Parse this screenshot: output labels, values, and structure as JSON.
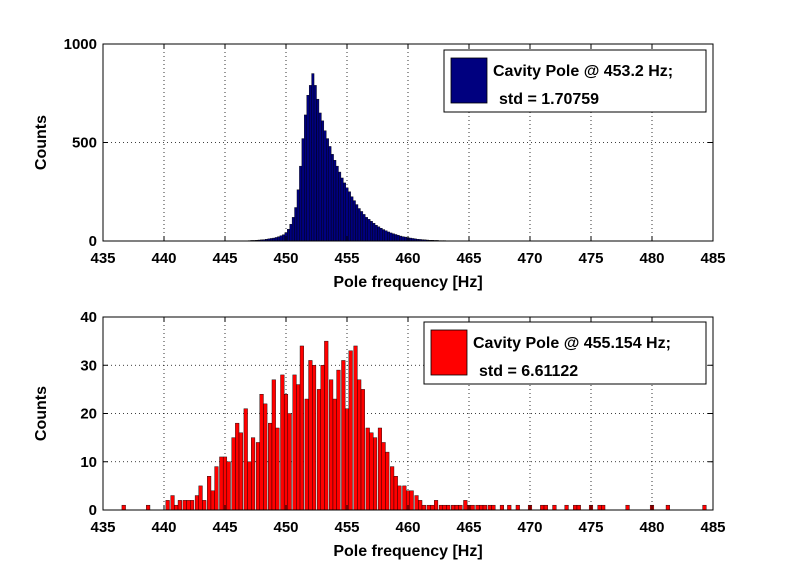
{
  "chart_data": [
    {
      "type": "bar",
      "xlabel": "Pole frequency [Hz]",
      "ylabel": "Counts",
      "xlim": [
        435,
        485
      ],
      "ylim": [
        0,
        1000
      ],
      "xticks": [
        "435",
        "440",
        "445",
        "450",
        "455",
        "460",
        "465",
        "470",
        "475",
        "480",
        "485"
      ],
      "yticks": [
        "0",
        "500",
        "1000"
      ],
      "grid": true,
      "legend_position": "top-right",
      "legend": [
        "Cavity Pole @ 453.2 Hz;",
        "std = 1.70759"
      ],
      "color": "#00007f",
      "bin_width": 0.2,
      "x": [
        447.0,
        447.2,
        447.4,
        447.6,
        447.8,
        448.0,
        448.2,
        448.4,
        448.6,
        448.8,
        449.0,
        449.2,
        449.4,
        449.6,
        449.8,
        450.0,
        450.2,
        450.4,
        450.6,
        450.8,
        451.0,
        451.2,
        451.4,
        451.6,
        451.8,
        452.0,
        452.2,
        452.4,
        452.6,
        452.8,
        453.0,
        453.2,
        453.4,
        453.6,
        453.8,
        454.0,
        454.2,
        454.4,
        454.6,
        454.8,
        455.0,
        455.2,
        455.4,
        455.6,
        455.8,
        456.0,
        456.2,
        456.4,
        456.6,
        456.8,
        457.0,
        457.2,
        457.4,
        457.6,
        457.8,
        458.0,
        458.2,
        458.4,
        458.6,
        458.8,
        459.0,
        459.2,
        459.4,
        459.6,
        459.8,
        460.0,
        460.2,
        460.4,
        460.6,
        460.8,
        461.0,
        461.2,
        461.4,
        461.6,
        461.8,
        462.0,
        462.2,
        462.4,
        462.6,
        462.8,
        463.0
      ],
      "values": [
        2,
        3,
        3,
        4,
        5,
        6,
        7,
        9,
        11,
        13,
        15,
        18,
        22,
        27,
        32,
        42,
        60,
        85,
        120,
        170,
        260,
        380,
        520,
        640,
        740,
        790,
        850,
        790,
        720,
        650,
        610,
        560,
        520,
        480,
        440,
        410,
        380,
        350,
        320,
        295,
        270,
        250,
        225,
        205,
        185,
        165,
        150,
        135,
        120,
        110,
        100,
        90,
        80,
        72,
        65,
        58,
        52,
        46,
        41,
        37,
        33,
        29,
        25,
        22,
        20,
        17,
        15,
        13,
        11,
        9,
        8,
        7,
        6,
        5,
        4,
        4,
        3,
        3,
        2,
        2,
        2
      ]
    },
    {
      "type": "bar",
      "xlabel": "Pole frequency [Hz]",
      "ylabel": "Counts",
      "xlim": [
        435,
        485
      ],
      "ylim": [
        0,
        40
      ],
      "xticks": [
        "435",
        "440",
        "445",
        "450",
        "455",
        "460",
        "465",
        "470",
        "475",
        "480",
        "485"
      ],
      "yticks": [
        "0",
        "10",
        "20",
        "30",
        "40"
      ],
      "grid": true,
      "legend_position": "top-right",
      "legend": [
        "Cavity Pole @ 455.154 Hz;",
        "std = 6.61122"
      ],
      "color": "#ff0000",
      "bin_width": 0.3,
      "x": [
        436.7,
        438.7,
        440.3,
        440.7,
        441.0,
        441.3,
        441.7,
        442.0,
        442.3,
        442.7,
        443.0,
        443.3,
        443.7,
        444.0,
        444.3,
        444.7,
        445.0,
        445.3,
        445.7,
        446.0,
        446.3,
        446.7,
        447.0,
        447.3,
        447.7,
        448.0,
        448.3,
        448.7,
        449.0,
        449.3,
        449.7,
        450.0,
        450.3,
        450.7,
        451.0,
        451.3,
        451.7,
        452.0,
        452.3,
        452.7,
        453.0,
        453.3,
        453.7,
        454.0,
        454.3,
        454.7,
        455.0,
        455.3,
        455.7,
        456.0,
        456.3,
        456.7,
        457.0,
        457.3,
        457.7,
        458.0,
        458.3,
        458.7,
        459.0,
        459.3,
        459.7,
        460.0,
        460.3,
        460.7,
        461.0,
        461.3,
        461.7,
        462.0,
        462.3,
        462.7,
        463.0,
        463.3,
        463.7,
        464.0,
        464.3,
        464.7,
        465.0,
        465.3,
        465.7,
        466.0,
        466.3,
        466.7,
        467.0,
        467.7,
        468.3,
        469.0,
        470.0,
        471.0,
        471.3,
        472.0,
        473.0,
        473.7,
        474.0,
        475.0,
        475.7,
        476.0,
        478.0,
        480.0,
        481.3,
        484.3
      ],
      "values": [
        1,
        1,
        2,
        3,
        1,
        2,
        2,
        2,
        2,
        3,
        5,
        2,
        7,
        4,
        9,
        11,
        11,
        10,
        15,
        18,
        16,
        21,
        10,
        15,
        14,
        24,
        22,
        18,
        27,
        17,
        28,
        24,
        20,
        28,
        26,
        34,
        23,
        31,
        30,
        25,
        30,
        35,
        27,
        23,
        29,
        31,
        21,
        33,
        34,
        27,
        25,
        17,
        16,
        15,
        17,
        14,
        12,
        9,
        7,
        5,
        5,
        4,
        4,
        3,
        2,
        1,
        1,
        1,
        2,
        1,
        1,
        1,
        1,
        1,
        1,
        2,
        1,
        1,
        1,
        1,
        1,
        1,
        1,
        1,
        1,
        1,
        1,
        1,
        1,
        1,
        1,
        1,
        1,
        1,
        1,
        1,
        1,
        1,
        1,
        1
      ]
    }
  ]
}
